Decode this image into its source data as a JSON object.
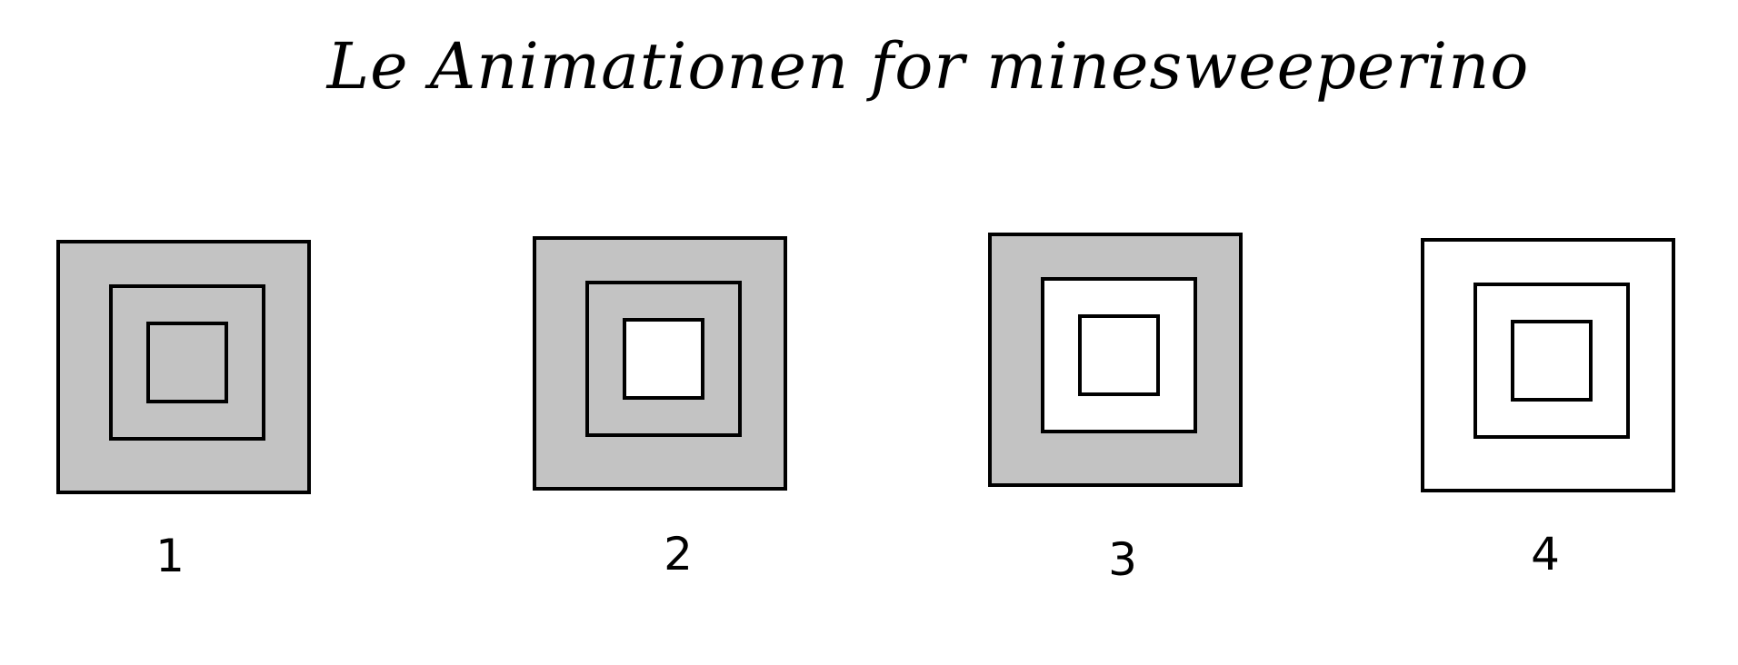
{
  "title": "Le Animationen for minesweeperino",
  "colors": {
    "filled": "#c3c3c3",
    "empty": "#ffffff",
    "stroke": "#000000"
  },
  "frames": [
    {
      "label": "1",
      "outer": "filled",
      "middle": "filled",
      "inner": "filled"
    },
    {
      "label": "2",
      "outer": "filled",
      "middle": "filled",
      "inner": "empty"
    },
    {
      "label": "3",
      "outer": "filled",
      "middle": "empty",
      "inner": "empty"
    },
    {
      "label": "4",
      "outer": "empty",
      "middle": "empty",
      "inner": "empty"
    }
  ]
}
